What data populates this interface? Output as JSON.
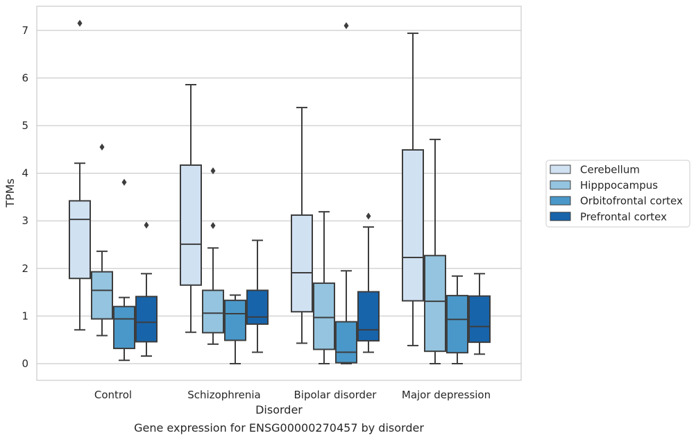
{
  "chart_data": {
    "type": "boxplot",
    "title": "",
    "caption": "Gene expression for ENSG00000270457 by disorder",
    "xlabel": "Disorder",
    "ylabel": "TPMs",
    "ylim": [
      -0.35,
      7.5
    ],
    "yticks": [
      0,
      1,
      2,
      3,
      4,
      5,
      6,
      7
    ],
    "grid": "horizontal",
    "legend_position": "right",
    "categories": [
      "Control",
      "Schizophrenia",
      "Bipolar disorder",
      "Major depression"
    ],
    "series": [
      {
        "name": "Cerebellum",
        "color": "#d0e1f2",
        "boxes": [
          {
            "whislo": 0.71,
            "q1": 1.79,
            "med": 3.03,
            "q3": 3.42,
            "whishi": 4.21,
            "fliers": [
              7.15
            ]
          },
          {
            "whislo": 0.66,
            "q1": 1.65,
            "med": 2.51,
            "q3": 4.17,
            "whishi": 5.86,
            "fliers": []
          },
          {
            "whislo": 0.43,
            "q1": 1.09,
            "med": 1.91,
            "q3": 3.12,
            "whishi": 5.38,
            "fliers": []
          },
          {
            "whislo": 0.38,
            "q1": 1.32,
            "med": 2.23,
            "q3": 4.49,
            "whishi": 6.94,
            "fliers": []
          }
        ]
      },
      {
        "name": "Hipppocampus",
        "color": "#94c4df",
        "boxes": [
          {
            "whislo": 0.59,
            "q1": 0.94,
            "med": 1.54,
            "q3": 1.93,
            "whishi": 2.36,
            "fliers": [
              4.55
            ]
          },
          {
            "whislo": 0.41,
            "q1": 0.65,
            "med": 1.06,
            "q3": 1.54,
            "whishi": 2.43,
            "fliers": [
              2.9,
              4.05
            ]
          },
          {
            "whislo": 0.0,
            "q1": 0.3,
            "med": 0.97,
            "q3": 1.69,
            "whishi": 3.19,
            "fliers": []
          },
          {
            "whislo": 0.0,
            "q1": 0.26,
            "med": 1.31,
            "q3": 2.27,
            "whishi": 4.71,
            "fliers": []
          }
        ]
      },
      {
        "name": "Orbitofrontal cortex",
        "color": "#4a98c9",
        "boxes": [
          {
            "whislo": 0.07,
            "q1": 0.32,
            "med": 0.94,
            "q3": 1.2,
            "whishi": 1.39,
            "fliers": [
              3.81
            ]
          },
          {
            "whislo": 0.0,
            "q1": 0.49,
            "med": 1.05,
            "q3": 1.33,
            "whishi": 1.44,
            "fliers": []
          },
          {
            "whislo": 0.0,
            "q1": 0.02,
            "med": 0.24,
            "q3": 0.88,
            "whishi": 1.95,
            "fliers": [
              7.1
            ]
          },
          {
            "whislo": 0.0,
            "q1": 0.23,
            "med": 0.93,
            "q3": 1.43,
            "whishi": 1.84,
            "fliers": []
          }
        ]
      },
      {
        "name": "Prefrontal cortex",
        "color": "#1764ab",
        "boxes": [
          {
            "whislo": 0.16,
            "q1": 0.46,
            "med": 0.87,
            "q3": 1.41,
            "whishi": 1.89,
            "fliers": [
              2.91
            ]
          },
          {
            "whislo": 0.24,
            "q1": 0.83,
            "med": 0.98,
            "q3": 1.54,
            "whishi": 2.59,
            "fliers": []
          },
          {
            "whislo": 0.24,
            "q1": 0.48,
            "med": 0.71,
            "q3": 1.51,
            "whishi": 2.87,
            "fliers": [
              3.1
            ]
          },
          {
            "whislo": 0.2,
            "q1": 0.45,
            "med": 0.78,
            "q3": 1.42,
            "whishi": 1.89,
            "fliers": []
          }
        ]
      }
    ]
  }
}
